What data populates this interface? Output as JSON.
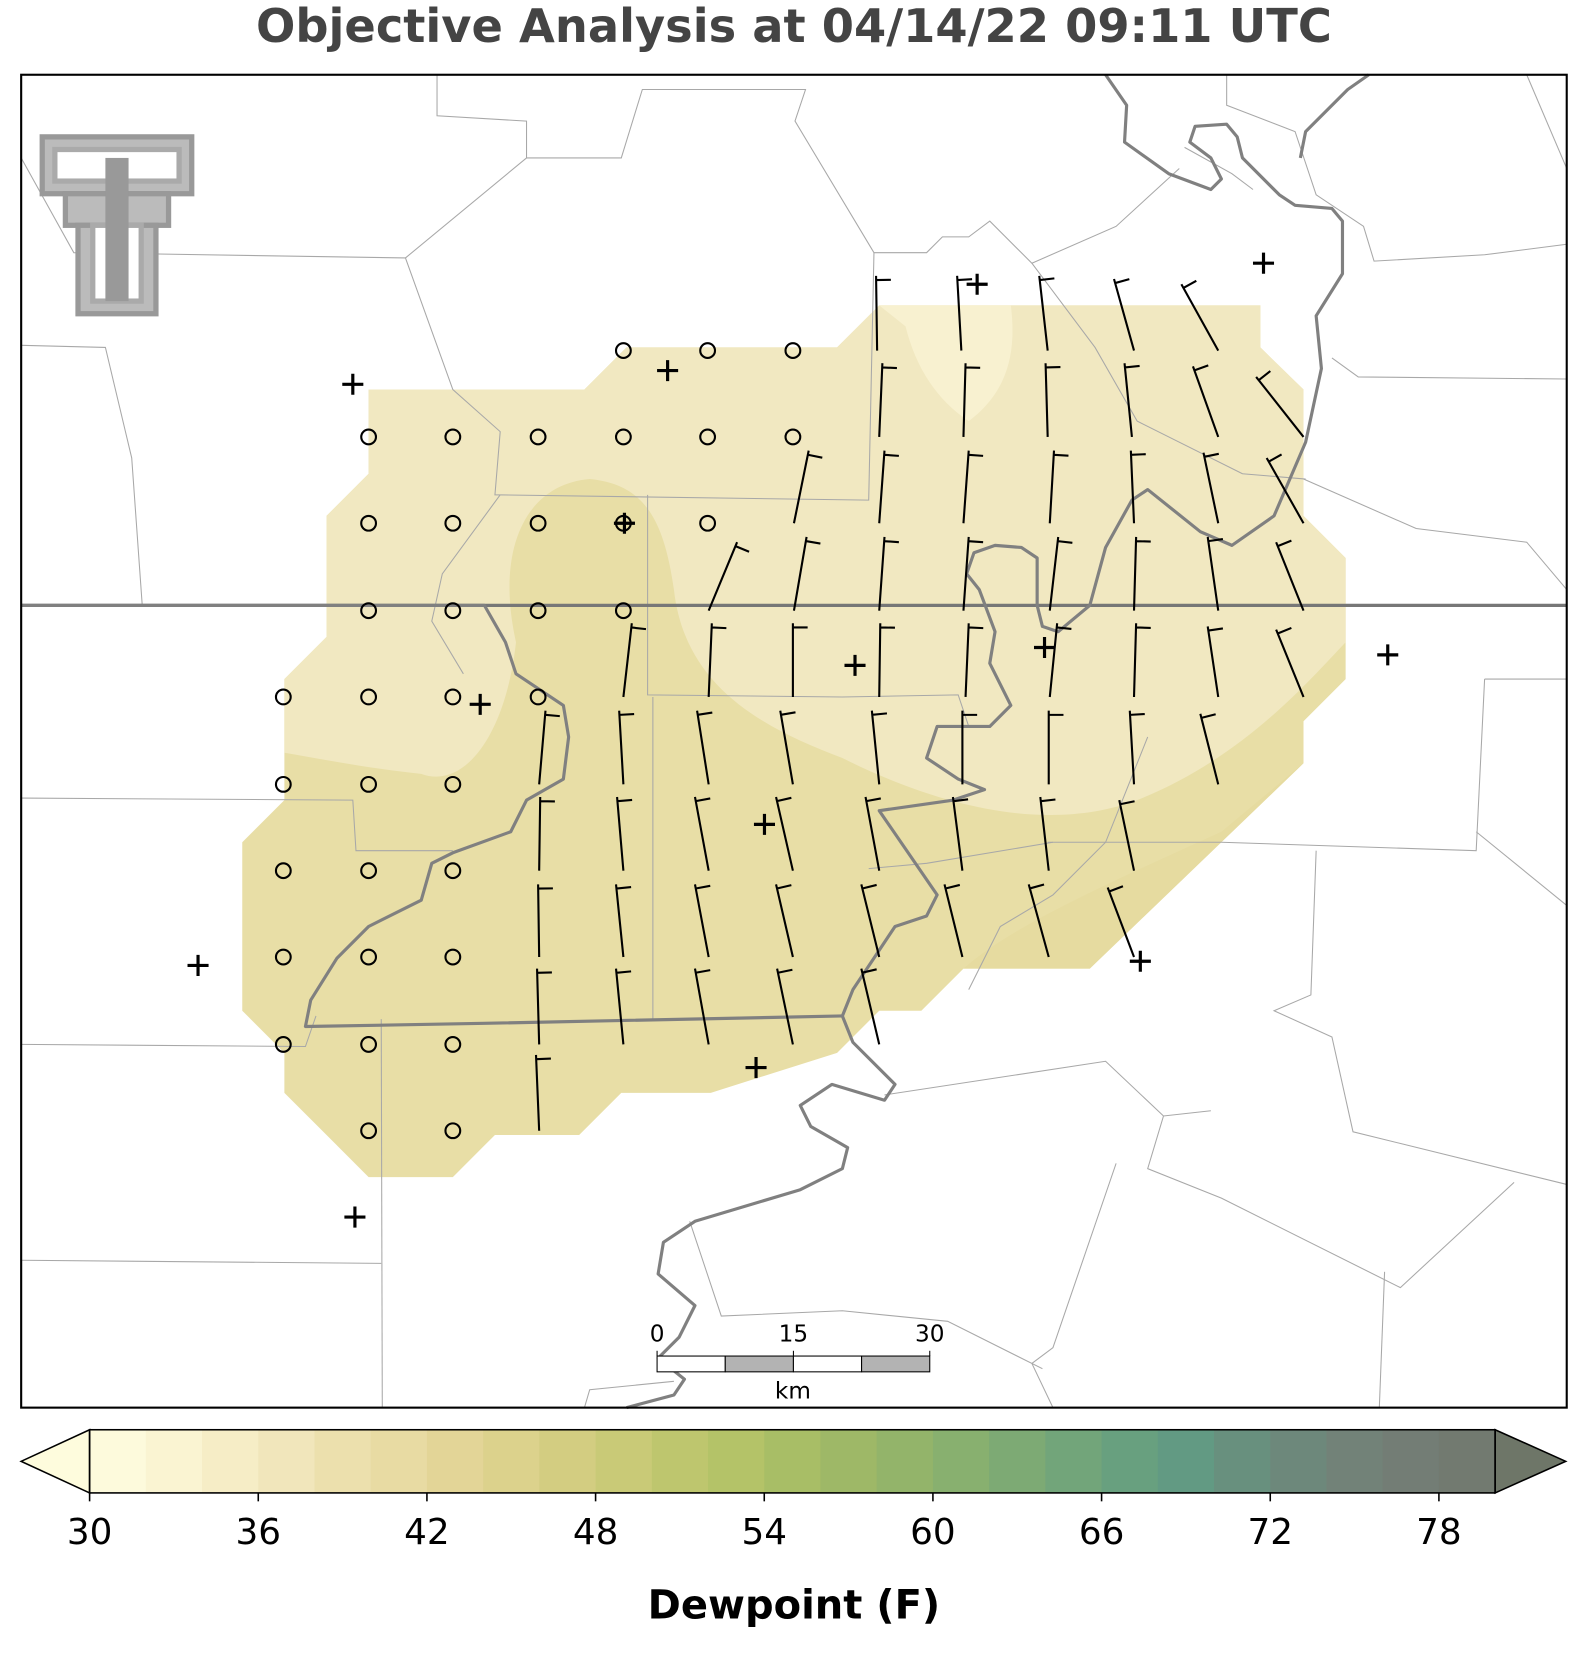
{
  "title": "Objective Analysis at 04/14/22 09:11 UTC",
  "colorbar": {
    "label": "Dewpoint (F)",
    "lim": [
      30,
      80
    ],
    "ticks": [
      30,
      36,
      42,
      48,
      54,
      60,
      66,
      72,
      78
    ],
    "colors": [
      "#fdfadc",
      "#faf4d2",
      "#f6edc6",
      "#f1e6bb",
      "#ece0ad",
      "#e8dba3",
      "#e3d597",
      "#dcd28c",
      "#d3cd81",
      "#c9ca77",
      "#bec66e",
      "#b4c368",
      "#a8be66",
      "#9eb867",
      "#93b46a",
      "#88b06f",
      "#7daa74",
      "#72a57a",
      "#68a07f",
      "#629a83",
      "#68907e",
      "#6d887b",
      "#728278",
      "#737d75",
      "#727a70"
    ],
    "under_color": "#fefcdd",
    "over_color": "#6e7668"
  },
  "scalebar": {
    "ticks": [
      0,
      15,
      30
    ],
    "unit": "km"
  }
}
